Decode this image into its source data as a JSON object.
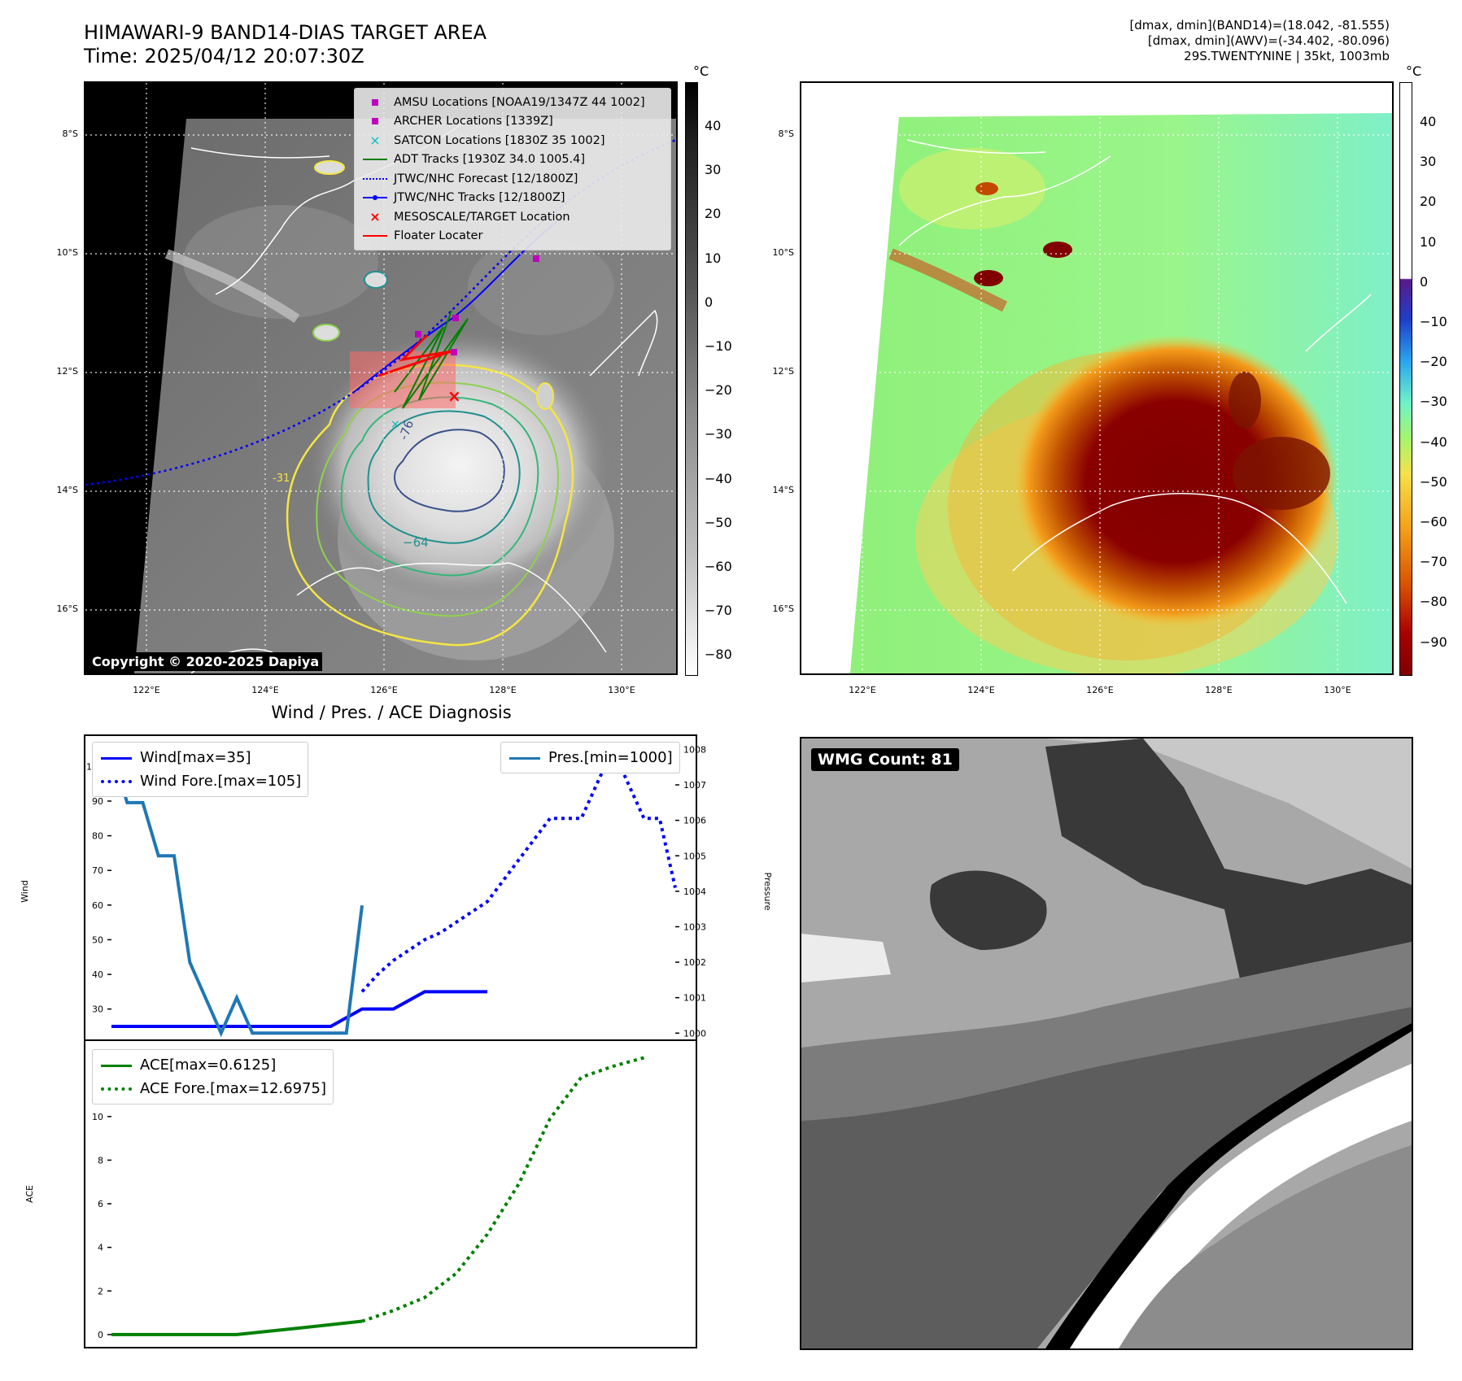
{
  "header": {
    "title_line1": "HIMAWARI-9 BAND14-DIAS TARGET AREA",
    "title_line2": "Time: 2025/04/12 20:07:30Z",
    "info_line1": "[dmax, dmin](BAND14)=(18.042, -81.555)",
    "info_line2": "[dmax, dmin](AWV)=(-34.402, -80.096)",
    "info_line3": "29S.TWENTYNINE | 35kt, 1003mb"
  },
  "map_axes": {
    "lat_labels": [
      "8°S",
      "10°S",
      "12°S",
      "14°S",
      "16°S"
    ],
    "lon_labels": [
      "122°E",
      "124°E",
      "126°E",
      "128°E",
      "130°E"
    ],
    "lat_values": [
      -8,
      -10,
      -12,
      -14,
      -16
    ],
    "lon_values": [
      122,
      124,
      126,
      128,
      130
    ]
  },
  "ir_panel": {
    "copyright": "Copyright © 2020-2025 Dapiya",
    "colorbar_unit": "°C",
    "colorbar_ticks": [
      "40",
      "30",
      "20",
      "10",
      "0",
      "−10",
      "−20",
      "−30",
      "−40",
      "−50",
      "−60",
      "−70",
      "−80"
    ],
    "contour_labels": [
      "-31",
      "-64",
      "-76"
    ],
    "legend": [
      {
        "label": "AMSU Locations [NOAA19/1347Z 44 1002]",
        "marker": "square",
        "color": "#bf00bf"
      },
      {
        "label": "ARCHER Locations [1339Z]",
        "marker": "square",
        "color": "#bf00bf"
      },
      {
        "label": "SATCON Locations [1830Z 35 1002]",
        "marker": "x",
        "color": "#00bfbf"
      },
      {
        "label": "ADT Tracks [1930Z 34.0 1005.4]",
        "marker": "line",
        "color": "#008000"
      },
      {
        "label": "JTWC/NHC Forecast [12/1800Z]",
        "marker": "dotted",
        "color": "#0000ff"
      },
      {
        "label": "JTWC/NHC Tracks [12/1800Z]",
        "marker": "line-dot",
        "color": "#0000ff"
      },
      {
        "label": "MESOSCALE/TARGET Location",
        "marker": "x",
        "color": "#ff0000"
      },
      {
        "label": "Floater Locater",
        "marker": "line",
        "color": "#ff0000"
      }
    ]
  },
  "awv_panel": {
    "colorbar_unit": "°C",
    "colorbar_ticks": [
      "40",
      "30",
      "20",
      "10",
      "0",
      "−10",
      "−20",
      "−30",
      "−40",
      "−50",
      "−60",
      "−70",
      "−80",
      "−90"
    ]
  },
  "wmg_panel": {
    "label": "WMG Count: 81"
  },
  "chart_data": [
    {
      "type": "line",
      "title": "Wind / Pres. / ACE Diagnosis",
      "ylabel": "Wind",
      "ylabel_right": "Pressure",
      "ylim": [
        21,
        109
      ],
      "ylim_right": [
        999.8,
        1008.4
      ],
      "yticks": [
        30,
        40,
        50,
        60,
        70,
        80,
        90,
        100
      ],
      "yticks_right": [
        1000,
        1001,
        1002,
        1003,
        1004,
        1005,
        1006,
        1007,
        1008
      ],
      "x": [
        0,
        1,
        2,
        3,
        4,
        5,
        6,
        7,
        8,
        9,
        10,
        11,
        12,
        13,
        14,
        15,
        16,
        17,
        18,
        19,
        20,
        21,
        22,
        23,
        24,
        25,
        26,
        27,
        28,
        29,
        30,
        31,
        32,
        33,
        34,
        35,
        36
      ],
      "series": [
        {
          "name": "Wind[max=35]",
          "color": "#0000ff",
          "style": "solid",
          "axis": "left",
          "x": [
            0,
            2,
            4,
            6,
            8,
            10,
            12,
            14,
            16,
            18,
            20,
            22,
            24
          ],
          "values": [
            25,
            25,
            25,
            25,
            25,
            25,
            25,
            25,
            30,
            30,
            35,
            35,
            35
          ]
        },
        {
          "name": "Wind Fore.[max=105]",
          "color": "#0000ff",
          "style": "dotted",
          "axis": "left",
          "x": [
            16,
            17,
            18,
            19,
            20,
            21,
            22,
            24,
            26,
            27,
            28,
            30,
            31,
            32,
            33,
            34,
            35,
            36
          ],
          "values": [
            35,
            40,
            44,
            47,
            50,
            52,
            55,
            61,
            73,
            79,
            85,
            85,
            95,
            105,
            95,
            85,
            85,
            65
          ]
        },
        {
          "name": "Pres.[min=1000]",
          "color": "#1f77b4",
          "style": "solid",
          "axis": "right",
          "x": [
            0,
            1,
            2,
            3,
            4,
            5,
            6,
            7,
            8,
            9,
            10,
            11,
            12,
            13,
            14,
            15,
            16
          ],
          "values": [
            1008,
            1006.5,
            1006.5,
            1005,
            1005,
            1002,
            1001,
            1000,
            1001,
            1000,
            1000,
            1000,
            1000,
            1000,
            1000,
            1000,
            1003.6
          ]
        }
      ]
    },
    {
      "type": "line",
      "ylabel": "ACE",
      "ylim": [
        -0.6,
        13.5
      ],
      "yticks": [
        0,
        2,
        4,
        6,
        8,
        10,
        12
      ],
      "series": [
        {
          "name": "ACE[max=0.6125]",
          "color": "#008000",
          "style": "solid",
          "x": [
            0,
            4,
            8,
            12,
            16
          ],
          "values": [
            0,
            0,
            0,
            0.3,
            0.6125
          ]
        },
        {
          "name": "ACE Fore.[max=12.6975]",
          "color": "#008000",
          "style": "dotted",
          "x": [
            16,
            18,
            20,
            22,
            24,
            26,
            28,
            30,
            32,
            34
          ],
          "values": [
            0.6125,
            1.1,
            1.7,
            2.8,
            4.6,
            6.9,
            9.9,
            11.8,
            12.3,
            12.6975
          ]
        }
      ]
    }
  ]
}
